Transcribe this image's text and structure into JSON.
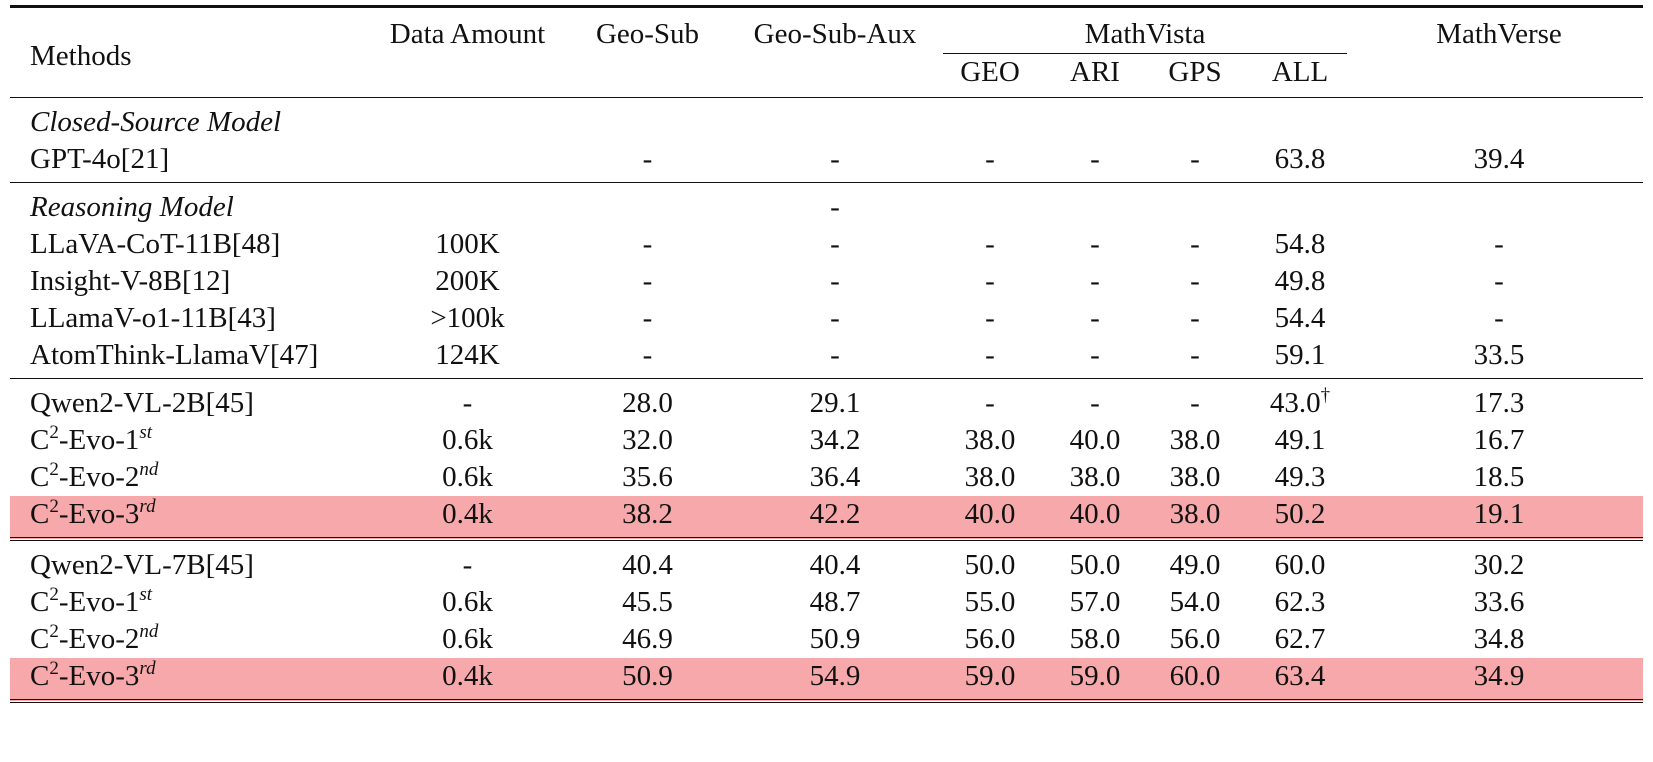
{
  "header": {
    "methods": "Methods",
    "data_amount": "Data Amount",
    "geo_sub": "Geo-Sub",
    "geo_sub_aux": "Geo-Sub-Aux",
    "mathvista": "MathVista",
    "geo": "GEO",
    "ari": "ARI",
    "gps": "GPS",
    "all": "ALL",
    "mathverse": "MathVerse"
  },
  "closed": {
    "title": "Closed-Source Model",
    "row": {
      "name": "GPT-4o[21]",
      "data": "",
      "sub": "-",
      "aux": "-",
      "geo": "-",
      "ari": "-",
      "gps": "-",
      "all": "63.8",
      "verse": "39.4"
    }
  },
  "reasoning": {
    "title": "Reasoning Model",
    "title_aux": "-",
    "rows": [
      {
        "name": "LLaVA-CoT-11B[48]",
        "data": "100K",
        "sub": "-",
        "aux": "-",
        "geo": "-",
        "ari": "-",
        "gps": "-",
        "all": "54.8",
        "verse": "-"
      },
      {
        "name": "Insight-V-8B[12]",
        "data": "200K",
        "sub": "-",
        "aux": "-",
        "geo": "-",
        "ari": "-",
        "gps": "-",
        "all": "49.8",
        "verse": "-"
      },
      {
        "name": "LLamaV-o1-11B[43]",
        "data": ">100k",
        "sub": "-",
        "aux": "-",
        "geo": "-",
        "ari": "-",
        "gps": "-",
        "all": "54.4",
        "verse": "-"
      },
      {
        "name": "AtomThink-LlamaV[47]",
        "data": "124K",
        "sub": "-",
        "aux": "-",
        "geo": "-",
        "ari": "-",
        "gps": "-",
        "all": "59.1",
        "verse": "33.5"
      }
    ]
  },
  "qwen2b": {
    "rows": [
      {
        "name": "Qwen2-VL-2B[45]",
        "data": "-",
        "sub": "28.0",
        "aux": "29.1",
        "geo": "-",
        "ari": "-",
        "gps": "-",
        "all": "43.0",
        "all_mark": "†",
        "verse": "17.3"
      },
      {
        "name_base": "C",
        "name_sup": "2",
        "name_mid": "-Evo-1",
        "name_ord": "st",
        "data": "0.6k",
        "sub": "32.0",
        "aux": "34.2",
        "geo": "38.0",
        "ari": "40.0",
        "gps": "38.0",
        "all": "49.1",
        "verse": "16.7"
      },
      {
        "name_base": "C",
        "name_sup": "2",
        "name_mid": "-Evo-2",
        "name_ord": "nd",
        "data": "0.6k",
        "sub": "35.6",
        "aux": "36.4",
        "geo": "38.0",
        "ari": "38.0",
        "gps": "38.0",
        "all": "49.3",
        "verse": "18.5"
      },
      {
        "name_base": "C",
        "name_sup": "2",
        "name_mid": "-Evo-3",
        "name_ord": "rd",
        "data": "0.4k",
        "sub": "38.2",
        "aux": "42.2",
        "geo": "40.0",
        "ari": "40.0",
        "gps": "38.0",
        "all": "50.2",
        "verse": "19.1"
      }
    ]
  },
  "qwen7b": {
    "rows": [
      {
        "name": "Qwen2-VL-7B[45]",
        "data": "-",
        "sub": "40.4",
        "aux": "40.4",
        "geo": "50.0",
        "ari": "50.0",
        "gps": "49.0",
        "all": "60.0",
        "verse": "30.2"
      },
      {
        "name_base": "C",
        "name_sup": "2",
        "name_mid": "-Evo-1",
        "name_ord": "st",
        "data": "0.6k",
        "sub": "45.5",
        "aux": "48.7",
        "geo": "55.0",
        "ari": "57.0",
        "gps": "54.0",
        "all": "62.3",
        "verse": "33.6"
      },
      {
        "name_base": "C",
        "name_sup": "2",
        "name_mid": "-Evo-2",
        "name_ord": "nd",
        "data": "0.6k",
        "sub": "46.9",
        "aux": "50.9",
        "geo": "56.0",
        "ari": "58.0",
        "gps": "56.0",
        "all": "62.7",
        "verse": "34.8"
      },
      {
        "name_base": "C",
        "name_sup": "2",
        "name_mid": "-Evo-3",
        "name_ord": "rd",
        "data": "0.4k",
        "sub": "50.9",
        "aux": "54.9",
        "geo": "59.0",
        "ari": "59.0",
        "gps": "60.0",
        "all": "63.4",
        "verse": "34.9"
      }
    ]
  },
  "highlight_color": "#f7a8ab"
}
